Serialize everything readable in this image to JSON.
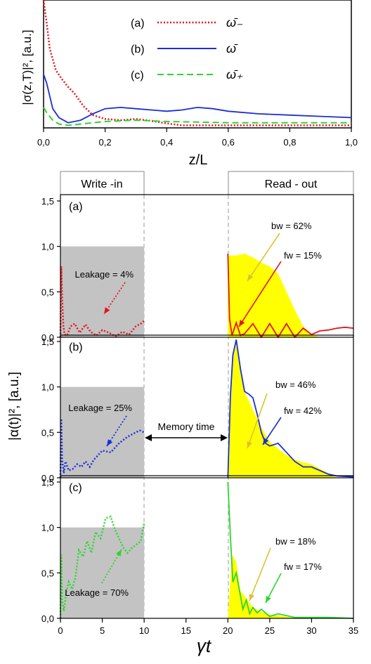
{
  "chart_data": [
    {
      "type": "line",
      "id": "top",
      "ylabel": "|σ(z,T)|², [a.u.]",
      "xlabel": "z/L",
      "xlim": [
        0,
        1
      ],
      "xticks": [
        "0,0",
        "0,2",
        "0,4",
        "0,6",
        "0,8",
        "1,0"
      ],
      "legend_placement": "top-center",
      "series": [
        {
          "name": "ω̄₋",
          "key": "(a)",
          "color": "#e8121b",
          "style": "dotted",
          "x": [
            0,
            0.01,
            0.02,
            0.04,
            0.06,
            0.08,
            0.1,
            0.13,
            0.16,
            0.2,
            0.25,
            0.3,
            0.35,
            0.4,
            0.45,
            0.5,
            0.6,
            0.7,
            0.8,
            0.9,
            1.0
          ],
          "y": [
            1.0,
            0.82,
            0.62,
            0.45,
            0.38,
            0.32,
            0.27,
            0.17,
            0.1,
            0.07,
            0.06,
            0.07,
            0.055,
            0.035,
            0.02,
            0.02,
            0.02,
            0.02,
            0.02,
            0.02,
            0.02
          ]
        },
        {
          "name": "ω̄",
          "key": "(b)",
          "color": "#1a2fd6",
          "style": "solid",
          "x": [
            0,
            0.01,
            0.03,
            0.05,
            0.08,
            0.12,
            0.16,
            0.2,
            0.25,
            0.3,
            0.35,
            0.4,
            0.45,
            0.5,
            0.55,
            0.6,
            0.7,
            0.8,
            0.9,
            1.0
          ],
          "y": [
            0.42,
            0.35,
            0.15,
            0.08,
            0.04,
            0.06,
            0.11,
            0.15,
            0.16,
            0.15,
            0.14,
            0.13,
            0.14,
            0.16,
            0.15,
            0.13,
            0.11,
            0.1,
            0.09,
            0.08
          ]
        },
        {
          "name": "ω̄₊",
          "key": "(c)",
          "color": "#2dd62d",
          "style": "dashed",
          "x": [
            0,
            0.01,
            0.03,
            0.05,
            0.08,
            0.12,
            0.2,
            0.3,
            0.4,
            0.5,
            0.6,
            0.7,
            0.8,
            0.9,
            1.0
          ],
          "y": [
            0.16,
            0.12,
            0.06,
            0.03,
            0.02,
            0.03,
            0.05,
            0.06,
            0.05,
            0.045,
            0.04,
            0.04,
            0.04,
            0.04,
            0.04
          ]
        }
      ]
    },
    {
      "type": "area",
      "id": "bottom",
      "ylabel": "|α(t)|², [a.u.]",
      "xlabel": "γt",
      "xlim": [
        0,
        35
      ],
      "ylim": [
        0,
        1.5
      ],
      "xticks": [
        "0",
        "5",
        "10",
        "15",
        "20",
        "25",
        "30",
        "35"
      ],
      "yticks": [
        "0,0",
        "0,5",
        "1,0",
        "1,5"
      ],
      "header_left": "Write -in",
      "header_right": "Read - out",
      "memory_label": "Memory time",
      "panels": [
        {
          "label": "(a)",
          "color": "#e8121b",
          "leakage_label": "Leakage = 4%",
          "bw_label": "bw = 62%",
          "fw_label": "fw = 15%",
          "write_x": [
            0,
            0.1,
            0.2,
            0.35,
            0.5,
            0.8,
            1.2,
            1.7,
            2.3,
            3,
            3.6,
            4.3,
            5,
            5.8,
            6.6,
            7.4,
            8.2,
            9,
            9.6,
            10
          ],
          "write_y": [
            0.0,
            0.78,
            0.45,
            0.12,
            0.03,
            0.02,
            0.12,
            0.15,
            0.05,
            0.14,
            0.06,
            0.02,
            0.08,
            0.05,
            0.01,
            0.06,
            0.03,
            0.12,
            0.15,
            0.18
          ],
          "read_x": [
            20,
            20.2,
            20.5,
            21,
            21.5,
            22,
            23,
            24,
            25,
            26,
            27,
            28,
            29,
            30,
            31,
            32,
            33,
            34,
            35
          ],
          "read_y": [
            0.92,
            0.2,
            0.02,
            0.16,
            0.02,
            0.04,
            0.15,
            0.0,
            0.15,
            0.0,
            0.15,
            0.0,
            0.1,
            0.03,
            0.07,
            0.08,
            0.1,
            0.11,
            0.1
          ],
          "fill_x": [
            20,
            21,
            22,
            23,
            24,
            25,
            26,
            27,
            28,
            29,
            30,
            31
          ],
          "fill_y": [
            0.9,
            0.9,
            0.92,
            0.88,
            0.82,
            0.78,
            0.7,
            0.5,
            0.3,
            0.12,
            0.03,
            0.0
          ]
        },
        {
          "label": "(b)",
          "color": "#1a2fd6",
          "leakage_label": "Leakage = 25%",
          "bw_label": "bw = 46%",
          "fw_label": "fw = 42%",
          "write_x": [
            0,
            0.1,
            0.2,
            0.4,
            0.6,
            1,
            1.5,
            2,
            2.5,
            3,
            3.5,
            4,
            5,
            6,
            7,
            8,
            9,
            9.5,
            10
          ],
          "write_y": [
            0.0,
            0.65,
            0.2,
            0.05,
            0.18,
            0.08,
            0.1,
            0.15,
            0.12,
            0.18,
            0.12,
            0.2,
            0.3,
            0.28,
            0.38,
            0.45,
            0.5,
            0.52,
            0.5
          ],
          "read_x": [
            20,
            20.3,
            20.6,
            21,
            21.5,
            22,
            22.5,
            23,
            23.5,
            24,
            24.5,
            25,
            26,
            27,
            28,
            29,
            30,
            31,
            32,
            33,
            35
          ],
          "read_y": [
            0.0,
            0.9,
            1.35,
            1.52,
            1.2,
            0.95,
            0.92,
            0.88,
            0.7,
            0.5,
            0.38,
            0.35,
            0.38,
            0.28,
            0.18,
            0.12,
            0.12,
            0.08,
            0.04,
            0.02,
            0.01
          ],
          "fill_x": [
            20,
            20.5,
            21,
            22,
            23,
            24,
            25,
            26,
            27,
            28,
            29,
            30,
            31,
            32,
            33
          ],
          "fill_y": [
            0.0,
            1.3,
            1.5,
            0.95,
            0.75,
            0.55,
            0.4,
            0.32,
            0.25,
            0.2,
            0.17,
            0.15,
            0.1,
            0.05,
            0.0
          ]
        },
        {
          "label": "(c)",
          "color": "#2dd62d",
          "leakage_label": "Leakage = 70%",
          "bw_label": "bw = 18%",
          "fw_label": "fw = 17%",
          "write_x": [
            0,
            0.1,
            0.2,
            0.4,
            0.7,
            1,
            1.4,
            1.8,
            2.2,
            2.7,
            3.2,
            3.7,
            4.2,
            4.8,
            5.4,
            6,
            6.5,
            7,
            7.5,
            8,
            8.6,
            9.2,
            9.6,
            10
          ],
          "write_y": [
            0.0,
            0.7,
            0.2,
            0.08,
            0.28,
            0.4,
            0.32,
            0.45,
            0.75,
            0.68,
            0.85,
            0.72,
            0.95,
            0.88,
            1.1,
            1.12,
            0.98,
            0.88,
            0.78,
            0.72,
            0.78,
            0.82,
            0.85,
            1.05
          ],
          "read_x": [
            20,
            20.3,
            20.6,
            21,
            21.4,
            21.8,
            22.2,
            22.6,
            23,
            23.5,
            24,
            25,
            26,
            27,
            28,
            30,
            32,
            35
          ],
          "read_y": [
            1.5,
            0.9,
            0.4,
            0.5,
            0.3,
            0.1,
            0.2,
            0.05,
            0.12,
            0.06,
            0.1,
            0.02,
            0.05,
            0.03,
            0.01,
            0.01,
            0.01,
            0.0
          ],
          "fill_x": [
            20,
            20.5,
            21,
            21.5,
            22,
            23,
            24,
            25,
            26,
            27,
            28
          ],
          "fill_y": [
            0.0,
            0.7,
            0.62,
            0.3,
            0.25,
            0.12,
            0.07,
            0.04,
            0.03,
            0.02,
            0.0
          ]
        }
      ]
    }
  ]
}
